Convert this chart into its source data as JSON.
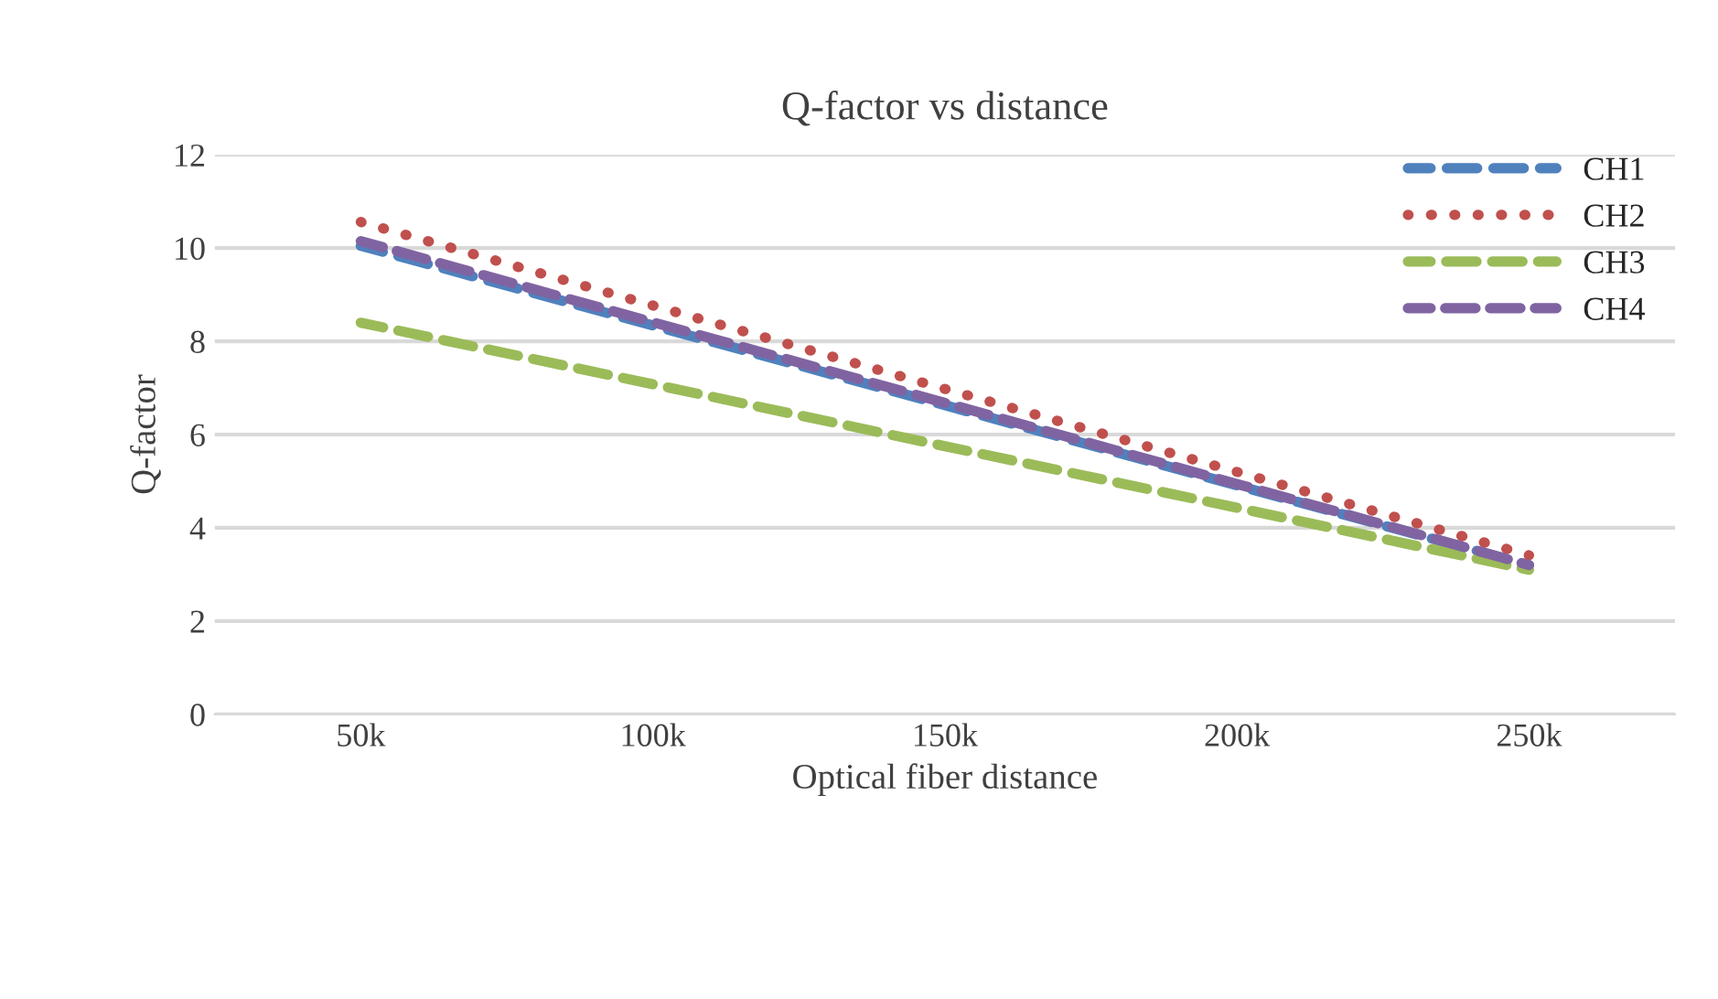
{
  "chart_data": {
    "type": "line",
    "title": "Q-factor vs distance",
    "xlabel": "Optical fiber distance",
    "ylabel": "Q-factor",
    "x": [
      50000,
      100000,
      150000,
      200000,
      250000
    ],
    "series": [
      {
        "name": "CH1",
        "color": "#4f81bd",
        "line_style": "dashed",
        "values": [
          10.05,
          8.34,
          6.63,
          4.91,
          3.2
        ]
      },
      {
        "name": "CH2",
        "color": "#c0504d",
        "line_style": "dotted",
        "values": [
          10.56,
          8.77,
          6.98,
          5.2,
          3.41
        ]
      },
      {
        "name": "CH3",
        "color": "#9bbb59",
        "line_style": "dashed",
        "values": [
          8.4,
          7.08,
          5.75,
          4.43,
          3.1
        ]
      },
      {
        "name": "CH4",
        "color": "#8064a2",
        "line_style": "dashed",
        "values": [
          10.15,
          8.41,
          6.68,
          4.94,
          3.2
        ]
      }
    ],
    "xlim": [
      25000,
      275000
    ],
    "xticks": [
      {
        "value": 50000,
        "label": "50k"
      },
      {
        "value": 100000,
        "label": "100k"
      },
      {
        "value": 150000,
        "label": "150k"
      },
      {
        "value": 200000,
        "label": "200k"
      },
      {
        "value": 250000,
        "label": "250k"
      }
    ],
    "ylim": [
      0,
      12
    ],
    "yticks": [
      0,
      2,
      4,
      6,
      8,
      10,
      12
    ],
    "grid": "y",
    "legend": "top right"
  }
}
